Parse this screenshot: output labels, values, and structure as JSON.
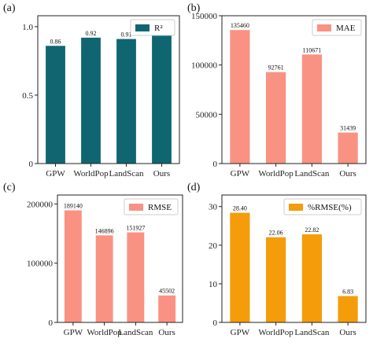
{
  "chart_data": [
    {
      "type": "bar",
      "panel": "(a)",
      "legend": "R²",
      "color": "#0f6670",
      "categories": [
        "GPW",
        "WorldPop",
        "LandScan",
        "Ours"
      ],
      "values": [
        0.86,
        0.92,
        0.91,
        0.99
      ],
      "value_labels": [
        "0.86",
        "0.92",
        "0.91",
        "0.99"
      ],
      "ylim": [
        0,
        1.08
      ],
      "yticks": [
        0,
        0.5,
        1.0
      ],
      "ytick_labels": [
        "0",
        "0.5",
        "1.0"
      ],
      "legend_position": "top-right"
    },
    {
      "type": "bar",
      "panel": "(b)",
      "legend": "MAE",
      "color": "#f99283",
      "categories": [
        "GPW",
        "WorldPop",
        "LandScan",
        "Ours"
      ],
      "values": [
        135460,
        92761,
        110671,
        31439
      ],
      "value_labels": [
        "135460",
        "92761",
        "110671",
        "31439"
      ],
      "ylim": [
        0,
        150000
      ],
      "yticks": [
        0,
        50000,
        100000,
        150000
      ],
      "ytick_labels": [
        "0",
        "50000",
        "100000",
        "150000"
      ],
      "legend_position": "top-right"
    },
    {
      "type": "bar",
      "panel": "(c)",
      "legend": "RMSE",
      "color": "#f99283",
      "categories": [
        "GPW",
        "WorldPop",
        "LandScan",
        "Ours"
      ],
      "values": [
        189140,
        146896,
        151927,
        45502
      ],
      "value_labels": [
        "189140",
        "146896",
        "151927",
        "45502"
      ],
      "ylim": [
        0,
        215000
      ],
      "yticks": [
        0,
        100000,
        200000
      ],
      "ytick_labels": [
        "0",
        "100000",
        "200000"
      ],
      "legend_position": "top-right"
    },
    {
      "type": "bar",
      "panel": "(d)",
      "legend": "%RMSE(%)",
      "color": "#f59c0b",
      "categories": [
        "GPW",
        "WorldPop",
        "LandScan",
        "Ours"
      ],
      "values": [
        28.4,
        22.06,
        22.82,
        6.83
      ],
      "value_labels": [
        "28.40",
        "22.06",
        "22.82",
        "6.83"
      ],
      "ylim": [
        0,
        33
      ],
      "yticks": [
        0,
        10,
        20,
        30
      ],
      "ytick_labels": [
        "0",
        "10",
        "20",
        "30"
      ],
      "legend_position": "top-right"
    }
  ]
}
